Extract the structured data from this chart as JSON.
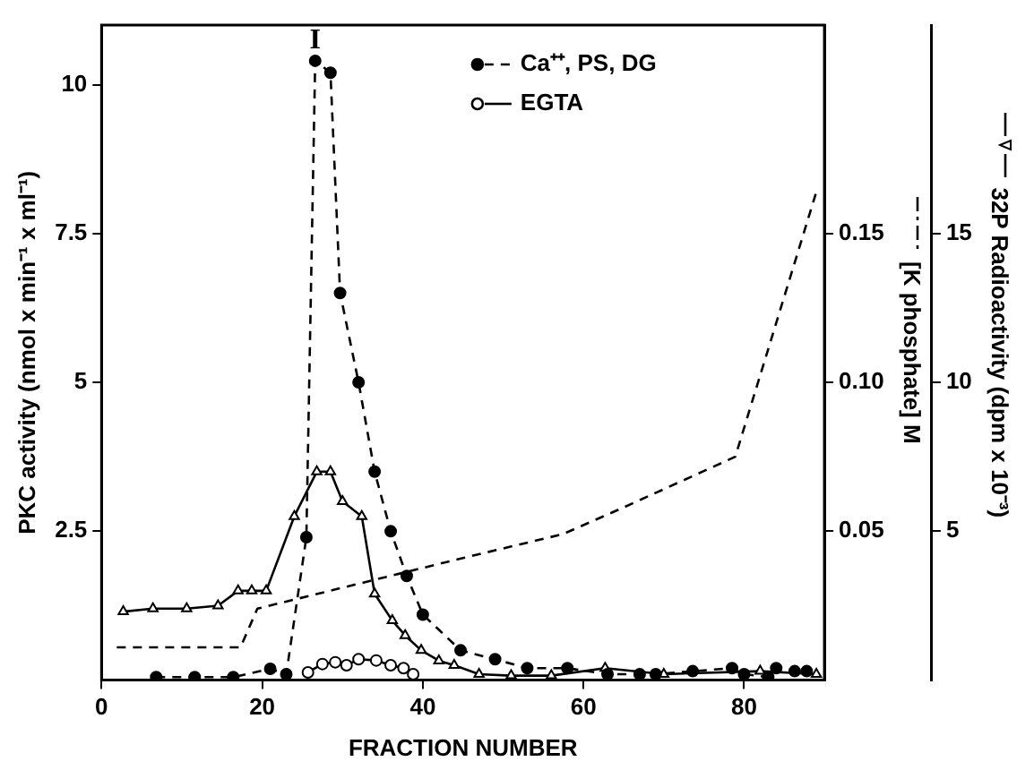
{
  "chart_data": {
    "type": "line",
    "xlabel": "FRACTION NUMBER",
    "ylabel": "PKC activity (nmol x min⁻¹ x ml⁻¹)",
    "y2label": "[K phosphate] M",
    "y3label": "32P Radioactivity (dpm x 10⁻³)",
    "xlim": [
      0,
      90
    ],
    "xticks": [
      0,
      20,
      40,
      60,
      80
    ],
    "ylim": [
      0,
      11
    ],
    "yticks": [
      2.5,
      5,
      7.5,
      10
    ],
    "y2lim": [
      0,
      0.22
    ],
    "y2ticks": [
      0.05,
      {
        "value": 0.1,
        "label": "0.10"
      },
      0.15
    ],
    "y3lim": [
      0,
      22
    ],
    "y3ticks": [
      5,
      10,
      15
    ],
    "grid": false,
    "legend": "top right",
    "annotations": [
      "I"
    ],
    "series": [
      {
        "name": "Ca⁺⁺, PS, DG",
        "color": "#000000",
        "marker": "circle",
        "line_style": "dashed",
        "x": [
          6.8,
          11.6,
          16.4,
          21,
          23,
          25.5,
          26.6,
          28.5,
          29.7,
          32,
          34,
          36,
          38,
          40,
          44.7,
          49,
          53,
          58,
          63,
          67,
          69,
          73.6,
          78.5,
          80,
          83,
          84,
          86.3,
          87.8
        ],
        "values": [
          0.05,
          0.05,
          0.05,
          0.19,
          0.1,
          2.4,
          10.4,
          10.2,
          6.5,
          5.0,
          3.5,
          2.5,
          1.75,
          1.1,
          0.5,
          0.35,
          0.2,
          0.2,
          0.1,
          0.1,
          0.1,
          0.15,
          0.2,
          0.1,
          0.05,
          0.2,
          0.15,
          0.15
        ]
      },
      {
        "name": "EGTA",
        "color": "#000000",
        "marker": "circle",
        "line_style": "solid",
        "x": [
          25.7,
          27.5,
          29.1,
          30.5,
          32,
          34.2,
          36,
          37.6,
          38.8
        ],
        "values": [
          0.13,
          0.27,
          0.3,
          0.25,
          0.35,
          0.33,
          0.25,
          0.2,
          0.1
        ]
      },
      {
        "color": "#000000",
        "marker": "none",
        "line_style": "dashed",
        "axis": "y2",
        "x": [
          1.9,
          17.3,
          19.4,
          45,
          57.4,
          65,
          78.9,
          89
        ],
        "values": [
          0.011,
          0.011,
          0.024,
          0.041,
          0.049,
          0.058,
          0.075,
          0.164
        ]
      },
      {
        "color": "#000000",
        "marker": "triangle",
        "line_style": "solid",
        "axis": "y3",
        "x": [
          2.7,
          6.4,
          10.6,
          14.5,
          17,
          18.7,
          20.5,
          24,
          26.8,
          28.5,
          30,
          32.4,
          34,
          36.2,
          37.8,
          39.8,
          42,
          43.9,
          47,
          51,
          56,
          62.7,
          70,
          82,
          89
        ],
        "values": [
          2.3,
          2.4,
          2.4,
          2.5,
          3.0,
          3.0,
          3.0,
          5.5,
          7.0,
          7.0,
          6.0,
          5.5,
          2.9,
          2.0,
          1.5,
          1.0,
          0.65,
          0.5,
          0.2,
          0.15,
          0.15,
          0.4,
          0.2,
          0.3,
          0.2
        ]
      }
    ]
  }
}
